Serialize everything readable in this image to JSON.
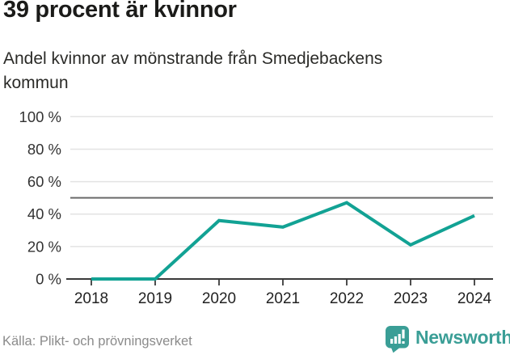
{
  "header": {
    "title": "39 procent är kvinnor",
    "subtitle": "Andel kvinnor av mönstrande från Smedjebackens kommun"
  },
  "chart_data": {
    "type": "line",
    "x": [
      2018,
      2019,
      2020,
      2021,
      2022,
      2023,
      2024
    ],
    "series": [
      {
        "name": "Andel kvinnor av mönstrande",
        "values": [
          0,
          0,
          36,
          32,
          47,
          21,
          39
        ]
      }
    ],
    "title": "39 procent är kvinnor",
    "subtitle": "Andel kvinnor av mönstrande från Smedjebackens kommun",
    "xlabel": "",
    "ylabel": "",
    "ylim": [
      0,
      100
    ],
    "ytick_values": [
      100,
      80,
      60,
      40,
      20,
      0
    ],
    "ytick_labels": [
      "100 %",
      "80 %",
      "60 %",
      "40 %",
      "20 %",
      "0 %"
    ],
    "reference_line": 50,
    "grid": true,
    "legend": false,
    "colors": {
      "line": "#12a294",
      "gridline": "#e3e3e3",
      "reference_line": "#6a6a6a",
      "axis": "#3a3a3a",
      "tick_label": "#333333"
    }
  },
  "footer": {
    "source": "Källa: Plikt- och prövningsverket",
    "brand": "Newsworthy",
    "brand_color": "#3a9e96",
    "logo_icon": "newsworthy-speech-bubble-bars-icon"
  }
}
